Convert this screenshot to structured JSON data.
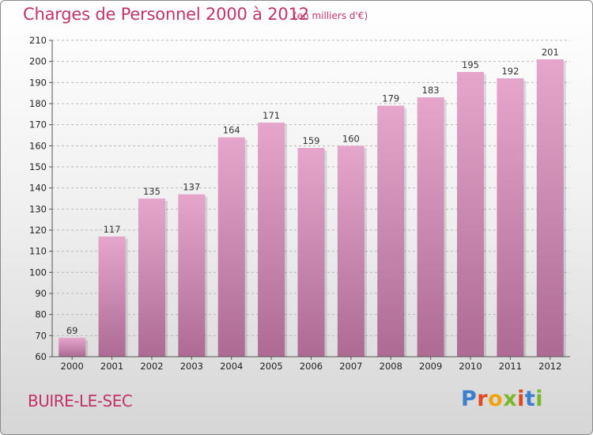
{
  "header": {
    "title": "Charges de Personnel 2000 à 2012",
    "subtitle": "(en milliers d'€)"
  },
  "footer": {
    "commune": "BUIRE-LE-SEC",
    "brand": "Proxiti"
  },
  "colors": {
    "bar_top": "#e6a6cc",
    "bar_bottom": "#ad6b93",
    "title": "#c0336a",
    "brand_letters": [
      "#3a7fd0",
      "#e0481f",
      "#f1a20f",
      "#7bb829",
      "#e0481f",
      "#3a7fd0",
      "#7bb829"
    ]
  },
  "chart_data": {
    "type": "bar",
    "categories": [
      "2000",
      "2001",
      "2002",
      "2003",
      "2004",
      "2005",
      "2006",
      "2007",
      "2008",
      "2009",
      "2010",
      "2011",
      "2012"
    ],
    "values": [
      69,
      117,
      135,
      137,
      164,
      171,
      159,
      160,
      179,
      183,
      195,
      192,
      201
    ],
    "ylim": [
      60,
      210
    ],
    "yticks": [
      60,
      70,
      80,
      90,
      100,
      110,
      120,
      130,
      140,
      150,
      160,
      170,
      180,
      190,
      200,
      210
    ],
    "grid": true,
    "data_labels": true
  }
}
